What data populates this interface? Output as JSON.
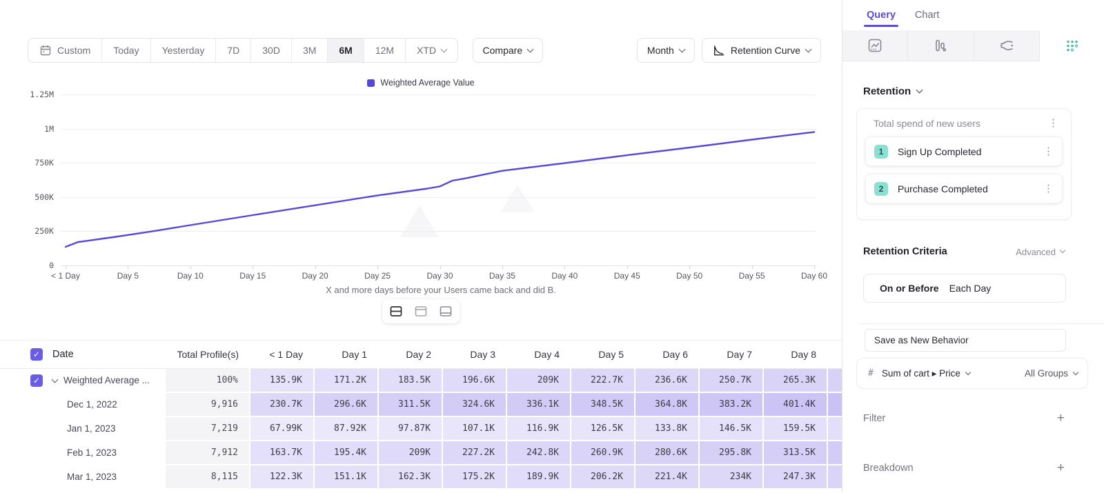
{
  "toolbar": {
    "date_ranges": [
      "Custom",
      "Today",
      "Yesterday",
      "7D",
      "30D",
      "3M",
      "6M",
      "12M",
      "XTD"
    ],
    "selected_range": "6M",
    "compare_label": "Compare",
    "granularity_label": "Month",
    "chart_type_label": "Retention Curve"
  },
  "chart_data": {
    "type": "line",
    "title": "",
    "xlabel": "X and more days before your Users came back and did B.",
    "ylabel": "",
    "ylim_k": [
      0,
      1250
    ],
    "grid": true,
    "legend_position": "top-center",
    "y_ticks": [
      {
        "label": "1.25M",
        "value_k": 1250
      },
      {
        "label": "1M",
        "value_k": 1000
      },
      {
        "label": "750K",
        "value_k": 750
      },
      {
        "label": "500K",
        "value_k": 500
      },
      {
        "label": "250K",
        "value_k": 250
      },
      {
        "label": "0",
        "value_k": 0
      }
    ],
    "x_ticks": [
      {
        "label": "< 1 Day",
        "day": 0
      },
      {
        "label": "Day 5",
        "day": 5
      },
      {
        "label": "Day 10",
        "day": 10
      },
      {
        "label": "Day 15",
        "day": 15
      },
      {
        "label": "Day 20",
        "day": 20
      },
      {
        "label": "Day 25",
        "day": 25
      },
      {
        "label": "Day 30",
        "day": 30
      },
      {
        "label": "Day 35",
        "day": 35
      },
      {
        "label": "Day 40",
        "day": 40
      },
      {
        "label": "Day 45",
        "day": 45
      },
      {
        "label": "Day 50",
        "day": 50
      },
      {
        "label": "Day 55",
        "day": 55
      },
      {
        "label": "Day 60",
        "day": 60
      }
    ],
    "series": [
      {
        "name": "Weighted Average Value",
        "color": "#5547d8",
        "points_day_valueK": [
          [
            0,
            135.9
          ],
          [
            1,
            171.2
          ],
          [
            2,
            183.5
          ],
          [
            3,
            196.6
          ],
          [
            4,
            209
          ],
          [
            5,
            222.7
          ],
          [
            6,
            236.6
          ],
          [
            7,
            250.7
          ],
          [
            8,
            265.3
          ],
          [
            10,
            295
          ],
          [
            15,
            368
          ],
          [
            20,
            440
          ],
          [
            25,
            512
          ],
          [
            29,
            562
          ],
          [
            30,
            578
          ],
          [
            31,
            620
          ],
          [
            32,
            636
          ],
          [
            35,
            692
          ],
          [
            40,
            748
          ],
          [
            45,
            806
          ],
          [
            50,
            862
          ],
          [
            55,
            920
          ],
          [
            60,
            976
          ]
        ]
      }
    ]
  },
  "view_toggles": [
    {
      "icon": "split-view-icon",
      "active": true
    },
    {
      "icon": "chart-view-icon",
      "active": false
    },
    {
      "icon": "table-view-icon",
      "active": false
    }
  ],
  "table": {
    "columns": [
      "Date",
      "Total Profile(s)",
      "< 1 Day",
      "Day 1",
      "Day 2",
      "Day 3",
      "Day 4",
      "Day 5",
      "Day 6",
      "Day 7",
      "Day 8"
    ],
    "rows": [
      {
        "label": "Weighted Average ...",
        "expandable": true,
        "checked": true,
        "total": "100%",
        "values": [
          "135.9K",
          "171.2K",
          "183.5K",
          "196.6K",
          "209K",
          "222.7K",
          "236.6K",
          "250.7K",
          "265.3K"
        ]
      },
      {
        "label": "Dec 1, 2022",
        "total": "9,916",
        "values": [
          "230.7K",
          "296.6K",
          "311.5K",
          "324.6K",
          "336.1K",
          "348.5K",
          "364.8K",
          "383.2K",
          "401.4K"
        ]
      },
      {
        "label": "Jan 1, 2023",
        "total": "7,219",
        "values": [
          "67.99K",
          "87.92K",
          "97.87K",
          "107.1K",
          "116.9K",
          "126.5K",
          "133.8K",
          "146.5K",
          "159.5K"
        ]
      },
      {
        "label": "Feb 1, 2023",
        "total": "7,912",
        "values": [
          "163.7K",
          "195.4K",
          "209K",
          "227.2K",
          "242.8K",
          "260.9K",
          "280.6K",
          "295.8K",
          "313.5K"
        ]
      },
      {
        "label": "Mar 1, 2023",
        "total": "8,115",
        "values": [
          "122.3K",
          "151.1K",
          "162.3K",
          "175.2K",
          "189.9K",
          "206.2K",
          "221.4K",
          "234K",
          "247.3K"
        ]
      }
    ]
  },
  "sidebar": {
    "tabs": [
      {
        "label": "Query",
        "active": true
      },
      {
        "label": "Chart",
        "active": false
      }
    ],
    "report_tabs": [
      {
        "icon": "insights-icon",
        "active": false
      },
      {
        "icon": "funnels-icon",
        "active": false
      },
      {
        "icon": "flows-icon",
        "active": false
      },
      {
        "icon": "retention-icon",
        "active": true
      }
    ],
    "section_title": "Retention",
    "behavior": {
      "title": "Total spend of new users",
      "steps": [
        {
          "num": "1",
          "label": "Sign Up Completed"
        },
        {
          "num": "2",
          "label": "Purchase Completed"
        }
      ]
    },
    "criteria": {
      "heading": "Retention Criteria",
      "mode": "Advanced",
      "condition": "On or Before",
      "interval": "Each Day"
    },
    "save_button": "Save as New Behavior",
    "measurement": {
      "prefix": "#",
      "label": "Sum of cart ▸ Price",
      "groups": "All Groups"
    },
    "filter_label": "Filter",
    "breakdown_label": "Breakdown"
  },
  "colors": {
    "accent_purple": "#5b4bd8",
    "line_purple": "#5547d8",
    "heat_base_purple": "#6d55e2",
    "teal_badge": "#8ce0d2",
    "teal_icon": "#39bfae"
  }
}
